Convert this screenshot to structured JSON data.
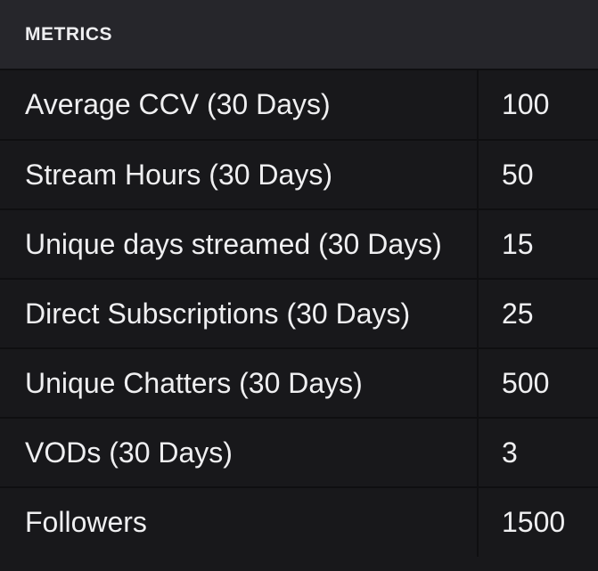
{
  "header": {
    "title": "METRICS"
  },
  "metrics": [
    {
      "label": "Average CCV (30 Days)",
      "value": "100"
    },
    {
      "label": "Stream Hours (30 Days)",
      "value": "50"
    },
    {
      "label": "Unique days streamed (30 Days)",
      "value": "15"
    },
    {
      "label": "Direct Subscriptions (30 Days)",
      "value": "25"
    },
    {
      "label": "Unique Chatters (30 Days)",
      "value": "500"
    },
    {
      "label": "VODs (30 Days)",
      "value": "3"
    },
    {
      "label": "Followers",
      "value": "1500"
    }
  ],
  "colors": {
    "background": "#18181b",
    "header_background": "#26262b",
    "divider": "#0f0f11",
    "text": "#efeff1"
  }
}
